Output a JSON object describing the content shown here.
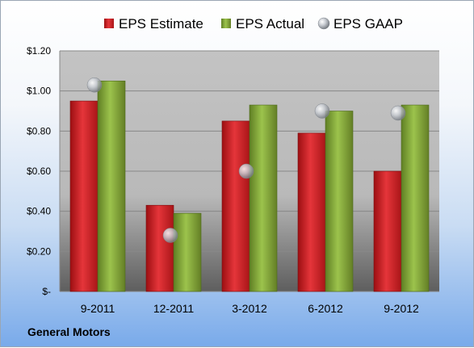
{
  "company": "General Motors",
  "colors": {
    "estimate": "#d9262b",
    "actual": "#88ad3d",
    "gaap": "#b8bcc2"
  },
  "chart_data": {
    "type": "bar",
    "categories": [
      "9-2011",
      "12-2011",
      "3-2012",
      "6-2012",
      "9-2012"
    ],
    "series": [
      {
        "name": "EPS Estimate",
        "values": [
          0.95,
          0.43,
          0.85,
          0.79,
          0.6
        ]
      },
      {
        "name": "EPS Actual",
        "values": [
          1.05,
          0.39,
          0.93,
          0.9,
          0.93
        ]
      },
      {
        "name": "EPS GAAP",
        "values": [
          1.03,
          0.28,
          0.6,
          0.9,
          0.89
        ],
        "style": "marker"
      }
    ],
    "yticks": [
      "$-",
      "$0.20",
      "$0.40",
      "$0.60",
      "$0.80",
      "$1.00",
      "$1.20"
    ],
    "ylim": [
      0,
      1.2
    ],
    "grid": true,
    "legend": "top-center"
  }
}
